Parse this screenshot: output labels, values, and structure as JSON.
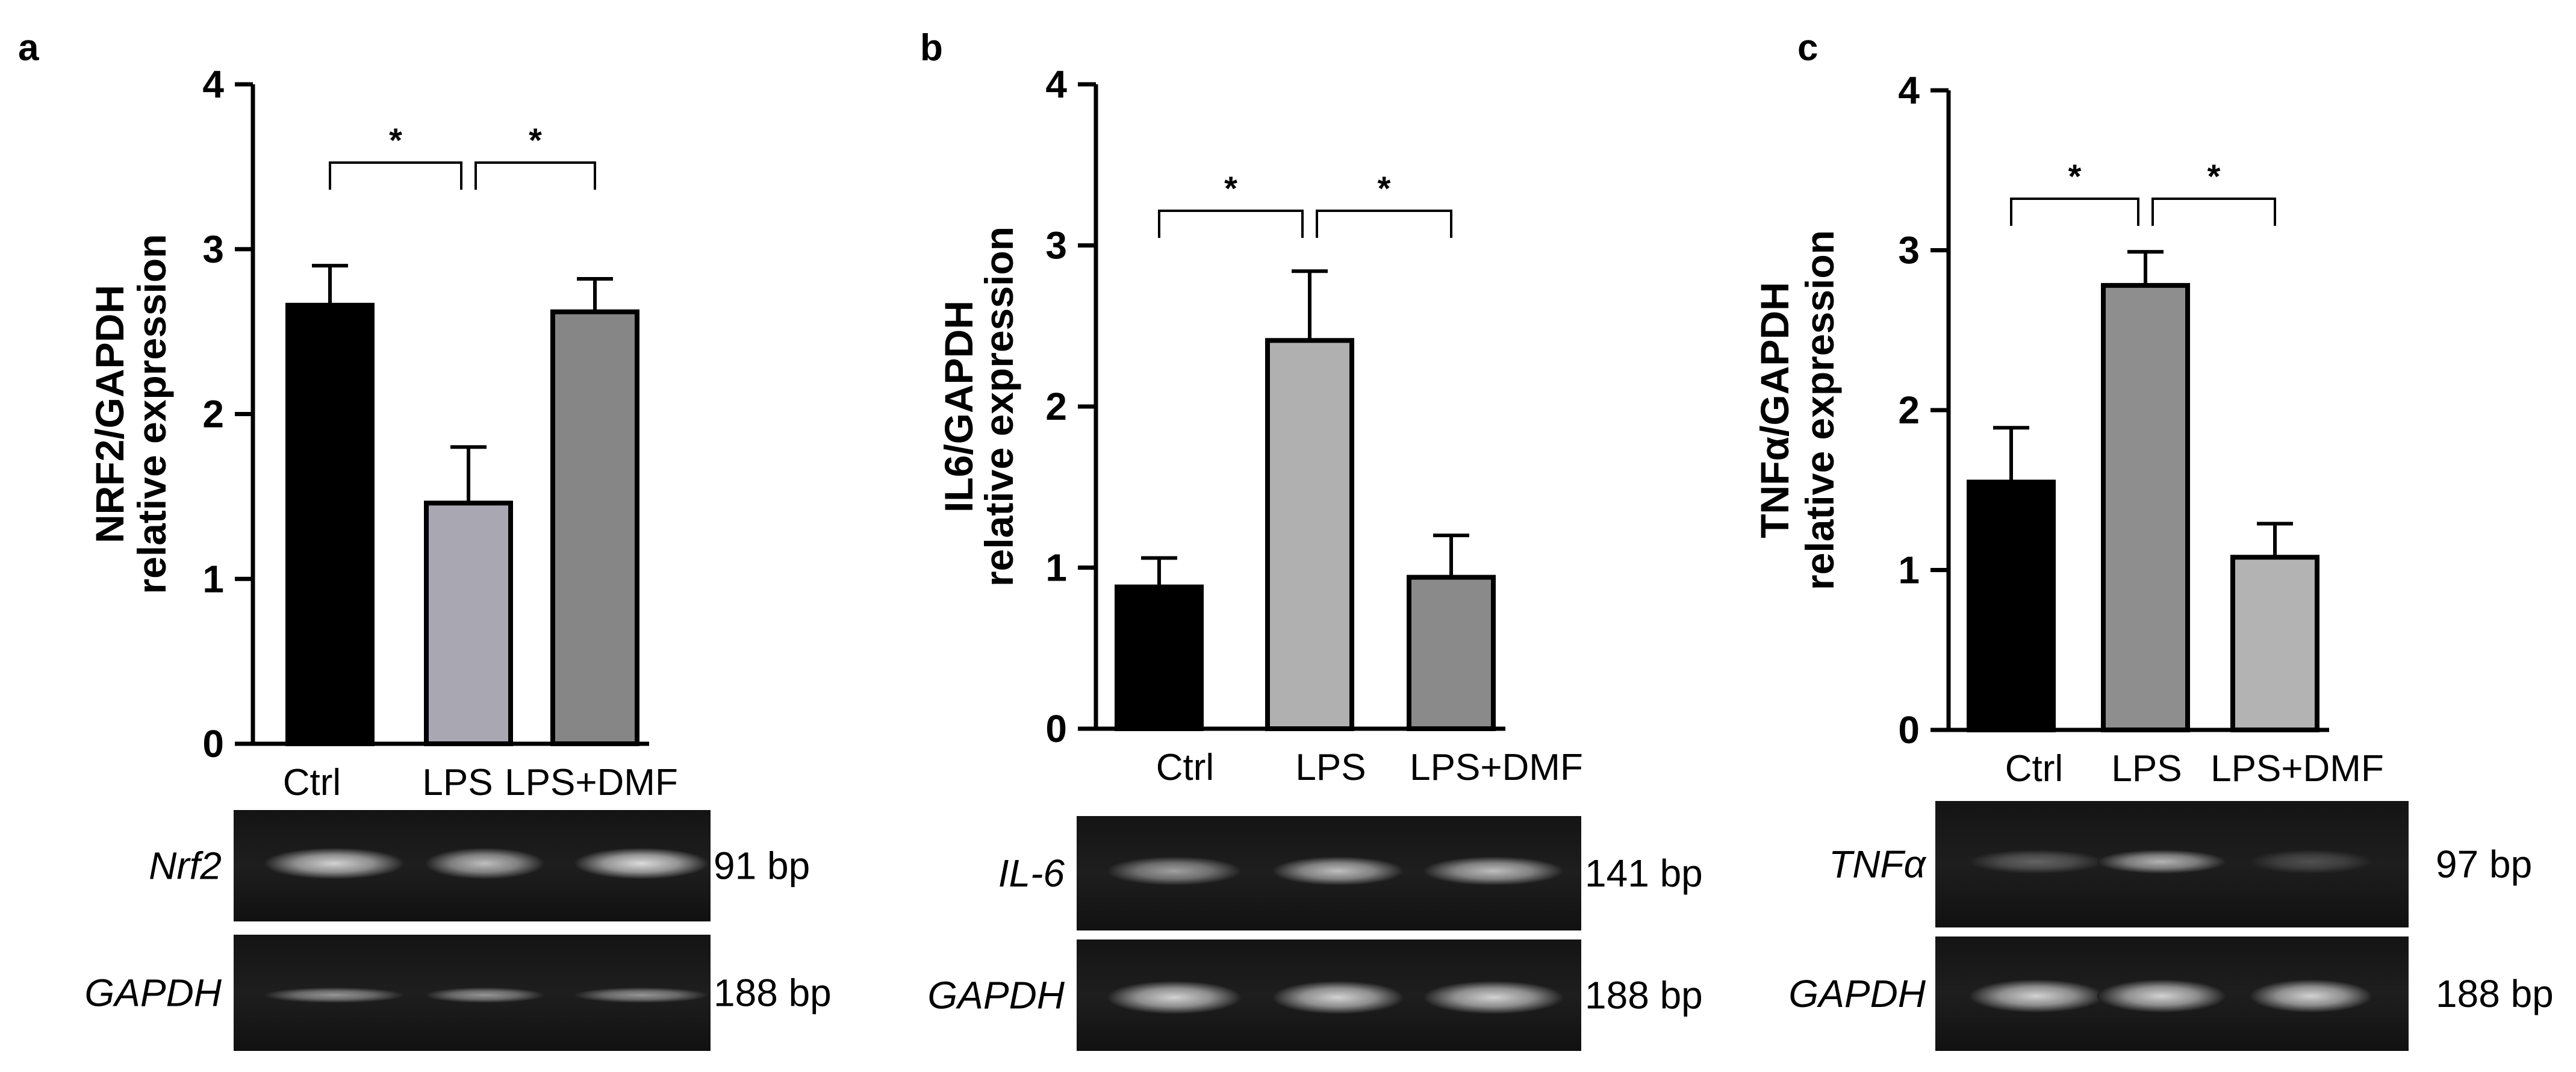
{
  "chart_data": [
    {
      "type": "bar",
      "panel_letter": "a",
      "categories": [
        "Ctrl",
        "LPS",
        "LPS+DMF"
      ],
      "values": [
        2.66,
        1.46,
        2.62
      ],
      "errors": [
        0.24,
        0.34,
        0.2
      ],
      "bar_colors": [
        "#000000",
        "#a9a7b1",
        "#868686"
      ],
      "ylabel_line1": "NRF2/GAPDH",
      "ylabel_line2": "relative expression",
      "ylim": [
        0,
        4
      ],
      "yticks": [
        "0",
        "1",
        "2",
        "3",
        "4"
      ],
      "significance": [
        {
          "from": 0,
          "to": 1,
          "label": "*",
          "at": 2.9
        },
        {
          "from": 1,
          "to": 2,
          "label": "*",
          "at": 2.9
        }
      ],
      "gel": {
        "target_label": "Nrf2",
        "target_size": "91 bp",
        "control_label": "GAPDH",
        "control_size": "188 bp"
      }
    },
    {
      "type": "bar",
      "panel_letter": "b",
      "categories": [
        "Ctrl",
        "LPS",
        "LPS+DMF"
      ],
      "values": [
        0.88,
        2.41,
        0.94
      ],
      "errors": [
        0.18,
        0.43,
        0.26
      ],
      "bar_colors": [
        "#000000",
        "#b0b0b0",
        "#8a8a8a"
      ],
      "ylabel_line1": "IL6/GAPDH",
      "ylabel_line2": "relative expression",
      "ylim": [
        0,
        4
      ],
      "yticks": [
        "0",
        "1",
        "2",
        "3",
        "4"
      ],
      "significance": [
        {
          "from": 0,
          "to": 1,
          "label": "*",
          "at": 3.0
        },
        {
          "from": 1,
          "to": 2,
          "label": "*",
          "at": 3.0
        }
      ],
      "gel": {
        "target_label": "IL-6",
        "target_size": "141 bp",
        "control_label": "GAPDH",
        "control_size": "188 bp"
      }
    },
    {
      "type": "bar",
      "panel_letter": "c",
      "categories": [
        "Ctrl",
        "LPS",
        "LPS+DMF"
      ],
      "values": [
        1.55,
        2.78,
        1.08
      ],
      "errors": [
        0.34,
        0.21,
        0.21
      ],
      "bar_colors": [
        "#000000",
        "#8e8e8e",
        "#b3b3b3"
      ],
      "ylabel_line1": "TNFα/GAPDH",
      "ylabel_line2": "relative expression",
      "ylim": [
        0,
        4
      ],
      "yticks": [
        "0",
        "1",
        "2",
        "3",
        "4"
      ],
      "significance": [
        {
          "from": 0,
          "to": 1,
          "label": "*",
          "at": 3.0
        },
        {
          "from": 1,
          "to": 2,
          "label": "*",
          "at": 3.0
        }
      ],
      "gel": {
        "target_label": "TNFα",
        "target_size": "97 bp",
        "control_label": "GAPDH",
        "control_size": "188 bp"
      }
    }
  ]
}
